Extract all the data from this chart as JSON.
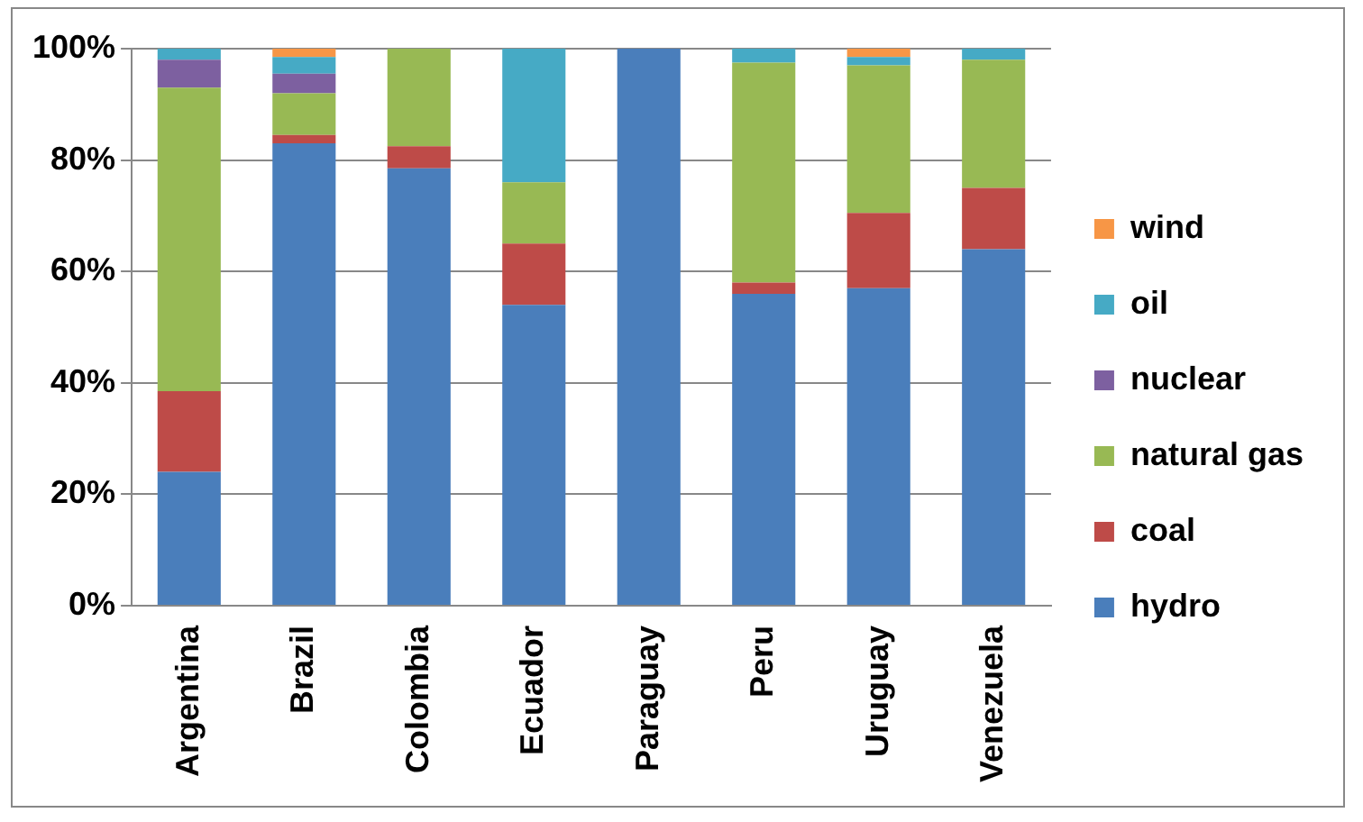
{
  "chart_data": {
    "type": "bar",
    "stacked": true,
    "categories": [
      "Argentina",
      "Brazil",
      "Colombia",
      "Ecuador",
      "Paraguay",
      "Peru",
      "Uruguay",
      "Venezuela"
    ],
    "series": [
      {
        "name": "hydro",
        "color": "#4a7ebb",
        "values": [
          24,
          83,
          78.5,
          54,
          100,
          56,
          57,
          64
        ]
      },
      {
        "name": "coal",
        "color": "#be4b48",
        "values": [
          14.5,
          1.5,
          4,
          11,
          0,
          2,
          13.5,
          11
        ]
      },
      {
        "name": "natural gas",
        "color": "#98b954",
        "values": [
          54.5,
          7.5,
          17.5,
          11,
          0,
          39.5,
          26.5,
          23
        ]
      },
      {
        "name": "nuclear",
        "color": "#7d60a0",
        "values": [
          5,
          3.5,
          0,
          0,
          0,
          0,
          0,
          0
        ]
      },
      {
        "name": "oil",
        "color": "#46aac5",
        "values": [
          2,
          3,
          0,
          24,
          0,
          2.5,
          1.5,
          2
        ]
      },
      {
        "name": "wind",
        "color": "#f79646",
        "values": [
          0,
          1.5,
          0,
          0,
          0,
          0,
          1.5,
          0
        ]
      }
    ],
    "ylim": [
      0,
      100
    ],
    "yticks": [
      {
        "value": 0,
        "label": "0%"
      },
      {
        "value": 20,
        "label": "20%"
      },
      {
        "value": 40,
        "label": "40%"
      },
      {
        "value": 60,
        "label": "60%"
      },
      {
        "value": 80,
        "label": "80%"
      },
      {
        "value": 100,
        "label": "100%"
      }
    ],
    "grid": "y",
    "legend": "right"
  }
}
